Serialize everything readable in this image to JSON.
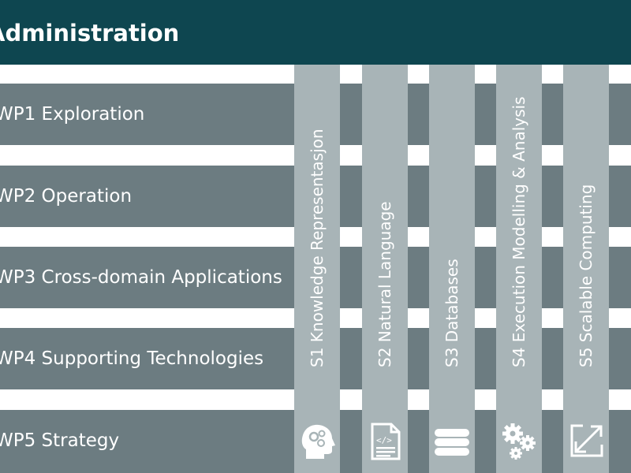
{
  "header": {
    "title": "Administration"
  },
  "work_packages": [
    {
      "label": "WP1 Exploration"
    },
    {
      "label": "WP2 Operation"
    },
    {
      "label": "WP3 Cross-domain Applications"
    },
    {
      "label": "WP4 Supporting Technologies"
    },
    {
      "label": "WP5 Strategy"
    }
  ],
  "subjects": [
    {
      "label": "S1 Knowledge Representasjon",
      "icon": "head-gears-icon"
    },
    {
      "label": "S2 Natural Language",
      "icon": "code-document-icon"
    },
    {
      "label": "S3 Databases",
      "icon": "database-stack-icon"
    },
    {
      "label": "S4 Execution Modelling & Analysis",
      "icon": "gears-icon"
    },
    {
      "label": "S5 Scalable Computing",
      "icon": "expand-arrows-icon"
    }
  ],
  "colors": {
    "header": "#0e4650",
    "row": "#6c7c81",
    "column": "#a8b4b7",
    "text": "#ffffff"
  }
}
